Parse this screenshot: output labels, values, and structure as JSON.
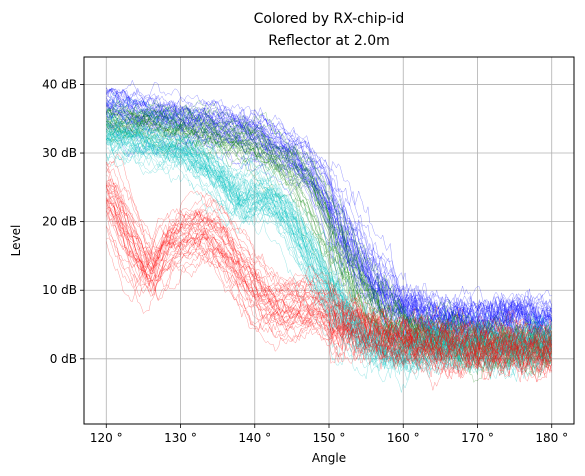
{
  "chart_data": {
    "type": "line",
    "title_line1": "Colored by RX-chip-id",
    "title_line2": "Reflector at 2.0m",
    "xlabel": "Angle",
    "ylabel": "Level",
    "xlim": [
      117,
      183
    ],
    "ylim": [
      -9.5,
      44
    ],
    "grid": true,
    "x_ticks": [
      120,
      130,
      140,
      150,
      160,
      170,
      180
    ],
    "x_tick_labels": [
      "120 °",
      "130 °",
      "140 °",
      "150 °",
      "160 °",
      "170 °",
      "180 °"
    ],
    "y_ticks": [
      0,
      10,
      20,
      30,
      40
    ],
    "y_tick_labels": [
      "0 dB",
      "10 dB",
      "20 dB",
      "30 dB",
      "40 dB"
    ],
    "series_groups": [
      {
        "color": "#0000ff",
        "curves_in_group": 40,
        "approx_mean_profile": {
          "x": [
            120,
            125,
            130,
            135,
            140,
            145,
            148,
            150,
            152,
            155,
            158,
            160,
            170,
            180
          ],
          "y": [
            37,
            36,
            35,
            34.5,
            33,
            30,
            27,
            23,
            19,
            13,
            9,
            7,
            6,
            6
          ]
        },
        "spread_db": 2.5
      },
      {
        "color": "#008000",
        "curves_in_group": 30,
        "approx_mean_profile": {
          "x": [
            120,
            125,
            130,
            135,
            140,
            145,
            147,
            150,
            152,
            155,
            158,
            160,
            170,
            180
          ],
          "y": [
            35,
            35,
            34,
            33,
            32,
            28,
            26,
            19,
            15,
            10,
            6,
            4,
            3,
            2
          ]
        },
        "spread_db": 2.5
      },
      {
        "color": "#00c0c0",
        "curves_in_group": 50,
        "approx_mean_profile": {
          "x": [
            120,
            125,
            130,
            135,
            138,
            140,
            143,
            145,
            148,
            150,
            153,
            155,
            158,
            160,
            170,
            180
          ],
          "y": [
            33,
            32,
            31,
            27,
            22,
            25,
            23,
            20,
            14,
            9,
            5,
            3,
            2,
            2,
            2,
            2
          ]
        },
        "spread_db": 3
      },
      {
        "color": "#ff0000",
        "curves_in_group": 40,
        "approx_mean_profile": {
          "x": [
            120,
            123,
            126,
            128,
            131,
            133,
            136,
            139,
            142,
            145,
            148,
            150,
            155,
            160,
            170,
            180
          ],
          "y": [
            25,
            18,
            12,
            17,
            19,
            20,
            17,
            12,
            8,
            8,
            9,
            7,
            4,
            3,
            2,
            2
          ]
        },
        "spread_db": 3.5
      }
    ]
  }
}
